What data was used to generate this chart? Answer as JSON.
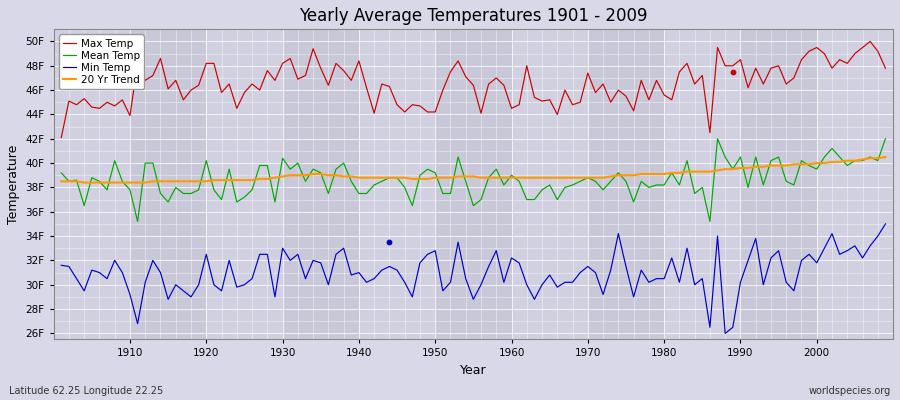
{
  "title": "Yearly Average Temperatures 1901 - 2009",
  "xlabel": "Year",
  "ylabel": "Temperature",
  "footer_left": "Latitude 62.25 Longitude 22.25",
  "footer_right": "worldspecies.org",
  "bg_color": "#d8d8e8",
  "plot_bg_color": "#d8d8e8",
  "grid_color": "#ffffff",
  "years": [
    1901,
    1902,
    1903,
    1904,
    1905,
    1906,
    1907,
    1908,
    1909,
    1910,
    1911,
    1912,
    1913,
    1914,
    1915,
    1916,
    1917,
    1918,
    1919,
    1920,
    1921,
    1922,
    1923,
    1924,
    1925,
    1926,
    1927,
    1928,
    1929,
    1930,
    1931,
    1932,
    1933,
    1934,
    1935,
    1936,
    1937,
    1938,
    1939,
    1940,
    1941,
    1942,
    1943,
    1944,
    1945,
    1946,
    1947,
    1948,
    1949,
    1950,
    1951,
    1952,
    1953,
    1954,
    1955,
    1956,
    1957,
    1958,
    1959,
    1960,
    1961,
    1962,
    1963,
    1964,
    1965,
    1966,
    1967,
    1968,
    1969,
    1970,
    1971,
    1972,
    1973,
    1974,
    1975,
    1976,
    1977,
    1978,
    1979,
    1980,
    1981,
    1982,
    1983,
    1984,
    1985,
    1986,
    1987,
    1988,
    1989,
    1990,
    1991,
    1992,
    1993,
    1994,
    1995,
    1996,
    1997,
    1998,
    1999,
    2000,
    2001,
    2002,
    2003,
    2004,
    2005,
    2006,
    2007,
    2008,
    2009
  ],
  "max_temp": [
    42.1,
    45.1,
    44.8,
    45.3,
    44.6,
    44.5,
    45.0,
    44.7,
    45.2,
    43.9,
    48.2,
    46.8,
    47.2,
    48.6,
    46.1,
    46.8,
    45.2,
    46.0,
    46.4,
    48.2,
    48.2,
    45.8,
    46.5,
    44.5,
    45.8,
    46.5,
    46.0,
    47.6,
    46.8,
    48.2,
    48.6,
    46.9,
    47.2,
    49.4,
    47.8,
    46.4,
    48.2,
    47.6,
    46.8,
    48.4,
    46.2,
    44.1,
    46.5,
    46.3,
    44.8,
    44.2,
    44.8,
    44.7,
    44.2,
    44.2,
    46.0,
    47.5,
    48.4,
    47.1,
    46.4,
    44.1,
    46.5,
    47.0,
    46.4,
    44.5,
    44.8,
    48.0,
    45.4,
    45.1,
    45.2,
    44.0,
    46.0,
    44.8,
    45.0,
    47.4,
    45.8,
    46.5,
    45.0,
    46.0,
    45.5,
    44.3,
    46.8,
    45.2,
    46.8,
    45.6,
    45.2,
    47.5,
    48.2,
    46.5,
    47.2,
    42.5,
    49.5,
    48.0,
    48.0,
    48.5,
    46.2,
    47.8,
    46.5,
    47.8,
    48.0,
    46.5,
    47.0,
    48.5,
    49.2,
    49.5,
    49.0,
    47.8,
    48.5,
    48.2,
    49.0,
    49.5,
    50.0,
    49.2,
    47.8
  ],
  "mean_temp": [
    39.2,
    38.5,
    38.6,
    36.5,
    38.8,
    38.5,
    37.8,
    40.2,
    38.5,
    37.8,
    35.2,
    40.0,
    40.0,
    37.5,
    36.8,
    38.0,
    37.5,
    37.5,
    37.8,
    40.2,
    37.8,
    37.0,
    39.5,
    36.8,
    37.2,
    37.8,
    39.8,
    39.8,
    36.8,
    40.4,
    39.5,
    40.0,
    38.5,
    39.5,
    39.2,
    37.5,
    39.5,
    40.0,
    38.5,
    37.5,
    37.5,
    38.2,
    38.5,
    38.8,
    38.8,
    38.0,
    36.5,
    39.0,
    39.5,
    39.2,
    37.5,
    37.5,
    40.5,
    38.5,
    36.5,
    37.0,
    38.8,
    39.5,
    38.2,
    39.0,
    38.5,
    37.0,
    37.0,
    37.8,
    38.2,
    37.0,
    38.0,
    38.2,
    38.5,
    38.8,
    38.5,
    37.8,
    38.5,
    39.2,
    38.5,
    36.8,
    38.5,
    38.0,
    38.2,
    38.2,
    39.2,
    38.2,
    40.2,
    37.5,
    38.0,
    35.2,
    42.0,
    40.5,
    39.5,
    40.5,
    38.0,
    40.5,
    38.2,
    40.2,
    40.5,
    38.5,
    38.2,
    40.2,
    39.8,
    39.5,
    40.5,
    41.2,
    40.5,
    39.8,
    40.2,
    40.2,
    40.5,
    40.2,
    42.0
  ],
  "min_temp": [
    31.6,
    31.5,
    30.5,
    29.5,
    31.2,
    31.0,
    30.5,
    32.0,
    31.0,
    29.2,
    26.8,
    30.2,
    32.0,
    31.0,
    28.8,
    30.0,
    29.5,
    29.0,
    30.0,
    32.5,
    30.0,
    29.5,
    32.0,
    29.8,
    30.0,
    30.5,
    32.5,
    32.5,
    29.0,
    33.0,
    32.0,
    32.5,
    30.5,
    32.0,
    31.8,
    30.0,
    32.5,
    33.0,
    30.8,
    31.0,
    30.2,
    30.5,
    31.2,
    31.5,
    31.2,
    30.2,
    29.0,
    31.8,
    32.5,
    32.8,
    29.5,
    30.2,
    33.5,
    30.5,
    28.8,
    30.0,
    31.5,
    32.8,
    30.2,
    32.2,
    31.8,
    30.0,
    28.8,
    30.0,
    30.8,
    29.8,
    30.2,
    30.2,
    31.0,
    31.5,
    31.0,
    29.2,
    31.2,
    34.2,
    31.5,
    29.0,
    31.2,
    30.2,
    30.5,
    30.5,
    32.2,
    30.2,
    33.0,
    30.0,
    30.5,
    26.5,
    34.0,
    26.0,
    26.5,
    30.2,
    32.0,
    33.8,
    30.0,
    32.2,
    32.8,
    30.2,
    29.5,
    32.0,
    32.5,
    31.8,
    33.0,
    34.2,
    32.5,
    32.8,
    33.2,
    32.2,
    33.2,
    34.0,
    35.0
  ],
  "trend": [
    38.5,
    38.5,
    38.5,
    38.4,
    38.4,
    38.4,
    38.4,
    38.4,
    38.4,
    38.4,
    38.4,
    38.4,
    38.5,
    38.5,
    38.5,
    38.5,
    38.5,
    38.5,
    38.5,
    38.5,
    38.6,
    38.6,
    38.6,
    38.6,
    38.6,
    38.6,
    38.7,
    38.7,
    38.8,
    38.9,
    39.0,
    39.0,
    39.0,
    39.1,
    39.1,
    39.0,
    39.0,
    38.9,
    38.9,
    38.8,
    38.8,
    38.8,
    38.8,
    38.8,
    38.8,
    38.8,
    38.7,
    38.7,
    38.7,
    38.8,
    38.8,
    38.8,
    38.9,
    38.9,
    38.9,
    38.8,
    38.8,
    38.8,
    38.8,
    38.8,
    38.8,
    38.8,
    38.8,
    38.8,
    38.8,
    38.8,
    38.8,
    38.8,
    38.8,
    38.8,
    38.8,
    38.8,
    38.9,
    39.0,
    39.0,
    39.0,
    39.1,
    39.1,
    39.1,
    39.1,
    39.2,
    39.2,
    39.3,
    39.3,
    39.3,
    39.3,
    39.4,
    39.5,
    39.5,
    39.6,
    39.6,
    39.7,
    39.7,
    39.8,
    39.8,
    39.8,
    39.9,
    39.9,
    39.9,
    40.0,
    40.0,
    40.1,
    40.1,
    40.2,
    40.2,
    40.3,
    40.4,
    40.4,
    40.5
  ],
  "yticks": [
    26,
    28,
    30,
    32,
    34,
    36,
    38,
    40,
    42,
    44,
    46,
    48,
    50
  ],
  "ylim": [
    25.5,
    51.0
  ],
  "xlim": [
    1900,
    2010
  ],
  "scatter_red": [
    [
      1989,
      47.5
    ]
  ],
  "scatter_blue": [
    [
      1944,
      33.5
    ]
  ]
}
